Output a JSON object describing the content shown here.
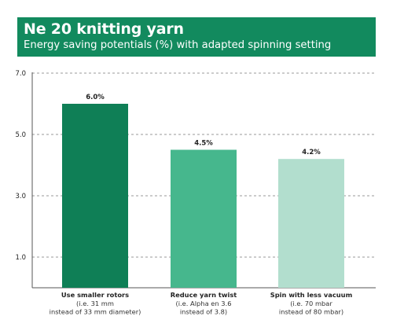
{
  "title": "Ne 20 knitting yarn",
  "subtitle": "Energy saving potentials (%) with adapted spinning setting",
  "colors": {
    "header": "#128a5e",
    "bars": [
      "#0f7f56",
      "#46b78d",
      "#b2dece"
    ]
  },
  "chart_data": {
    "type": "bar",
    "categories": [
      {
        "main": "Use smaller rotors",
        "sub": [
          "(i.e. 31 mm",
          "instead of 33 mm diameter)"
        ]
      },
      {
        "main": "Reduce yarn twist",
        "sub": [
          "(i.e. Alpha en 3.6",
          "instead of 3.8)"
        ]
      },
      {
        "main": "Spin with less vacuum",
        "sub": [
          "(i.e. 70 mbar",
          "instead of 80 mbar)"
        ]
      }
    ],
    "values": [
      6.0,
      4.5,
      4.2
    ],
    "value_labels": [
      "6.0%",
      "4.5%",
      "4.2%"
    ],
    "yticks": [
      {
        "value": 7.0,
        "label": "7.0"
      },
      {
        "value": 5.0,
        "label": "5.0"
      },
      {
        "value": 3.0,
        "label": "3.0"
      },
      {
        "value": 1.0,
        "label": "1.0"
      }
    ],
    "ylim": [
      0,
      7.0
    ],
    "grid": true,
    "xlabel": "",
    "ylabel": ""
  }
}
